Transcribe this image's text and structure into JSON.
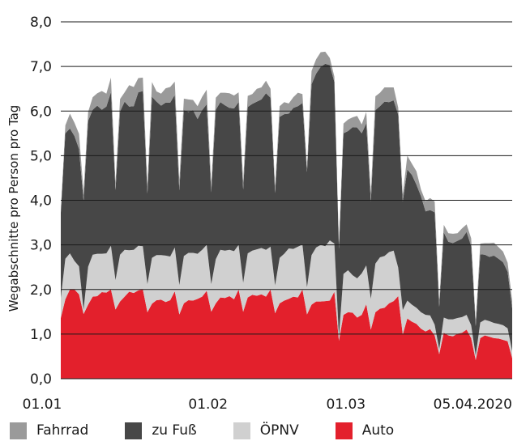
{
  "chart_data": {
    "type": "area",
    "stacked": true,
    "xlabel": "",
    "ylabel": "Wegabschnitte pro Person pro Tag",
    "ylim": [
      0,
      8
    ],
    "yticks": [
      "0,0",
      "1,0",
      "2,0",
      "3,0",
      "4,0",
      "5,0",
      "6,0",
      "7,0",
      "8,0"
    ],
    "x_start": "2020-01-01",
    "x_end": "2020-04-05",
    "xtick_labels": [
      {
        "date": "2020-01-01",
        "label": "01.01"
      },
      {
        "date": "2020-02-01",
        "label": "01.02"
      },
      {
        "date": "2020-03-01",
        "label": "01.03"
      },
      {
        "date": "2020-04-05",
        "label": "05.04.2020"
      }
    ],
    "grid": "horizontal",
    "legend_position": "bottom",
    "series": [
      {
        "name": "Auto",
        "color": "#e3202c",
        "values": [
          1.36,
          1.78,
          2.0,
          2.0,
          1.89,
          1.45,
          1.66,
          1.84,
          1.85,
          1.94,
          1.93,
          2.0,
          1.55,
          1.73,
          1.84,
          1.95,
          1.92,
          1.98,
          2.0,
          1.49,
          1.68,
          1.76,
          1.77,
          1.72,
          1.76,
          1.96,
          1.44,
          1.69,
          1.76,
          1.75,
          1.79,
          1.84,
          1.97,
          1.5,
          1.69,
          1.82,
          1.81,
          1.85,
          1.78,
          2.0,
          1.5,
          1.82,
          1.88,
          1.86,
          1.89,
          1.84,
          2.0,
          1.47,
          1.69,
          1.75,
          1.79,
          1.84,
          1.82,
          2.0,
          1.44,
          1.66,
          1.73,
          1.73,
          1.74,
          1.75,
          1.95,
          0.85,
          1.43,
          1.49,
          1.48,
          1.37,
          1.43,
          1.67,
          1.1,
          1.49,
          1.57,
          1.59,
          1.69,
          1.74,
          1.85,
          0.99,
          1.35,
          1.28,
          1.23,
          1.12,
          1.06,
          1.11,
          0.97,
          0.55,
          1.03,
          0.97,
          0.95,
          1.01,
          1.03,
          1.1,
          0.91,
          0.42,
          0.91,
          0.97,
          0.94,
          0.91,
          0.9,
          0.87,
          0.84,
          0.46
        ]
      },
      {
        "name": "ÖPNV",
        "color": "#d0d0d0",
        "values": [
          0.45,
          0.91,
          0.81,
          0.64,
          0.63,
          0.1,
          0.85,
          0.94,
          0.95,
          0.86,
          0.88,
          0.98,
          0.66,
          1.05,
          1.05,
          0.93,
          0.97,
          1.0,
          0.97,
          0.63,
          1.03,
          1.01,
          1.0,
          1.04,
          0.98,
          0.98,
          0.66,
          1.06,
          1.06,
          1.07,
          1.01,
          1.05,
          1.03,
          0.62,
          0.99,
          1.07,
          1.06,
          1.04,
          1.08,
          1.0,
          0.65,
          0.99,
          0.99,
          1.04,
          1.04,
          1.05,
          0.96,
          0.62,
          1.02,
          1.05,
          1.13,
          1.07,
          1.14,
          1.01,
          0.61,
          1.11,
          1.21,
          1.27,
          1.23,
          1.35,
          1.08,
          0.09,
          0.92,
          0.94,
          0.84,
          0.88,
          0.93,
          0.87,
          0.69,
          1.09,
          1.15,
          1.16,
          1.15,
          1.13,
          0.64,
          0.55,
          0.4,
          0.38,
          0.36,
          0.37,
          0.37,
          0.31,
          0.24,
          0.11,
          0.34,
          0.36,
          0.38,
          0.35,
          0.35,
          0.33,
          0.29,
          0.1,
          0.35,
          0.35,
          0.35,
          0.34,
          0.33,
          0.33,
          0.29,
          0.16
        ]
      },
      {
        "name": "zu Fuß",
        "color": "#474747",
        "values": [
          1.91,
          2.81,
          2.8,
          2.8,
          2.63,
          2.44,
          3.27,
          3.25,
          3.32,
          3.23,
          3.29,
          3.44,
          2.02,
          3.21,
          3.32,
          3.22,
          3.22,
          3.44,
          3.48,
          2.03,
          3.61,
          3.44,
          3.35,
          3.43,
          3.45,
          3.42,
          2.12,
          3.27,
          3.16,
          3.2,
          3.02,
          3.13,
          3.15,
          2.06,
          3.35,
          3.31,
          3.26,
          3.18,
          3.2,
          3.2,
          2.09,
          3.28,
          3.29,
          3.31,
          3.33,
          3.51,
          3.34,
          2.07,
          3.16,
          3.13,
          3.02,
          3.16,
          3.15,
          3.17,
          2.58,
          3.83,
          3.9,
          3.99,
          4.09,
          3.93,
          3.62,
          1.97,
          3.15,
          3.12,
          3.32,
          3.38,
          3.14,
          3.18,
          2.18,
          3.44,
          3.39,
          3.46,
          3.36,
          3.37,
          3.43,
          2.43,
          2.94,
          2.91,
          2.76,
          2.6,
          2.32,
          2.36,
          2.52,
          0.95,
          1.91,
          1.74,
          1.71,
          1.73,
          1.76,
          1.86,
          1.77,
          0.66,
          1.53,
          1.46,
          1.44,
          1.51,
          1.46,
          1.41,
          1.27,
          0.96
        ]
      },
      {
        "name": "Fahrrad",
        "color": "#9a9a9a",
        "values": [
          0.03,
          0.18,
          0.33,
          0.3,
          0.34,
          0.2,
          0.2,
          0.28,
          0.28,
          0.42,
          0.29,
          0.33,
          0.17,
          0.28,
          0.21,
          0.48,
          0.43,
          0.32,
          0.3,
          0.2,
          0.33,
          0.23,
          0.27,
          0.32,
          0.35,
          0.3,
          0.23,
          0.26,
          0.28,
          0.23,
          0.29,
          0.3,
          0.33,
          0.18,
          0.27,
          0.21,
          0.28,
          0.33,
          0.29,
          0.22,
          0.2,
          0.25,
          0.22,
          0.29,
          0.27,
          0.28,
          0.2,
          0.14,
          0.24,
          0.27,
          0.23,
          0.24,
          0.3,
          0.2,
          0.11,
          0.3,
          0.32,
          0.33,
          0.27,
          0.16,
          0.12,
          0.09,
          0.22,
          0.26,
          0.22,
          0.26,
          0.2,
          0.26,
          0.2,
          0.31,
          0.3,
          0.32,
          0.33,
          0.29,
          0.16,
          0.16,
          0.31,
          0.25,
          0.3,
          0.15,
          0.23,
          0.27,
          0.24,
          0.15,
          0.17,
          0.19,
          0.21,
          0.17,
          0.23,
          0.17,
          0.18,
          0.11,
          0.24,
          0.26,
          0.31,
          0.29,
          0.26,
          0.24,
          0.2,
          0.17
        ]
      }
    ]
  },
  "legend": {
    "items": [
      {
        "label": "Fahrrad",
        "color": "#9a9a9a"
      },
      {
        "label": "zu Fuß",
        "color": "#474747"
      },
      {
        "label": "ÖPNV",
        "color": "#d0d0d0"
      },
      {
        "label": "Auto",
        "color": "#e3202c"
      }
    ]
  },
  "style": {
    "grid_color": "#1a1a1a",
    "text_color": "#1a1a1a"
  }
}
